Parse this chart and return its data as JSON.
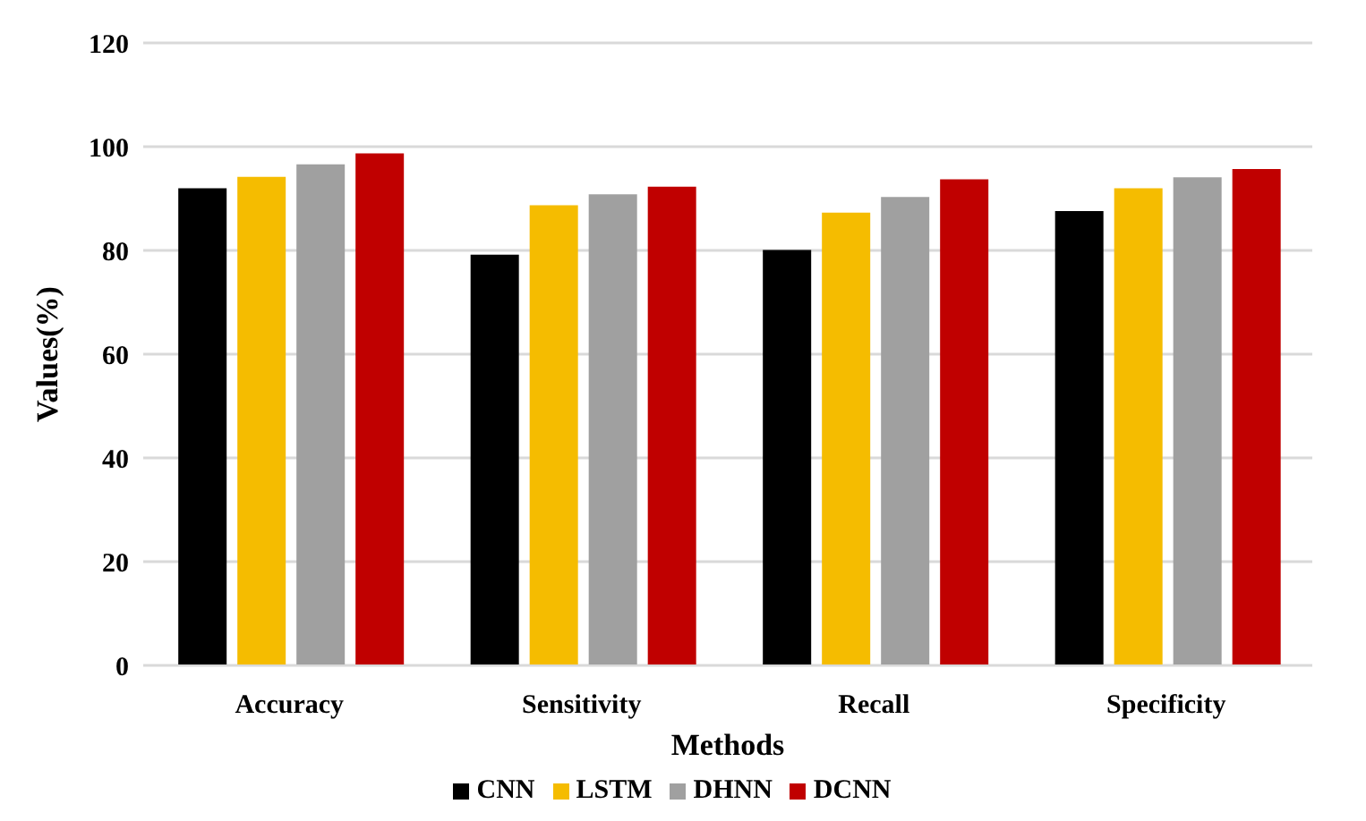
{
  "chart_data": {
    "type": "bar",
    "categories": [
      "Accuracy",
      "Sensitivity",
      "Recall",
      "Specificity"
    ],
    "series": [
      {
        "name": "CNN",
        "color": "#000000",
        "values": [
          92.0,
          79.2,
          80.1,
          87.6
        ]
      },
      {
        "name": "LSTM",
        "color": "#f5bc00",
        "values": [
          94.2,
          88.7,
          87.3,
          92.0
        ]
      },
      {
        "name": "DHNN",
        "color": "#a0a0a0",
        "values": [
          96.6,
          90.8,
          90.3,
          94.1
        ]
      },
      {
        "name": "DCNN",
        "color": "#c00000",
        "values": [
          98.7,
          92.3,
          93.7,
          95.7
        ]
      }
    ],
    "xlabel": "Methods",
    "ylabel": "Values(%)",
    "ylim": [
      0,
      120
    ],
    "yticks": [
      0,
      20,
      40,
      60,
      80,
      100,
      120
    ],
    "grid": "y",
    "legend": "bottom"
  }
}
